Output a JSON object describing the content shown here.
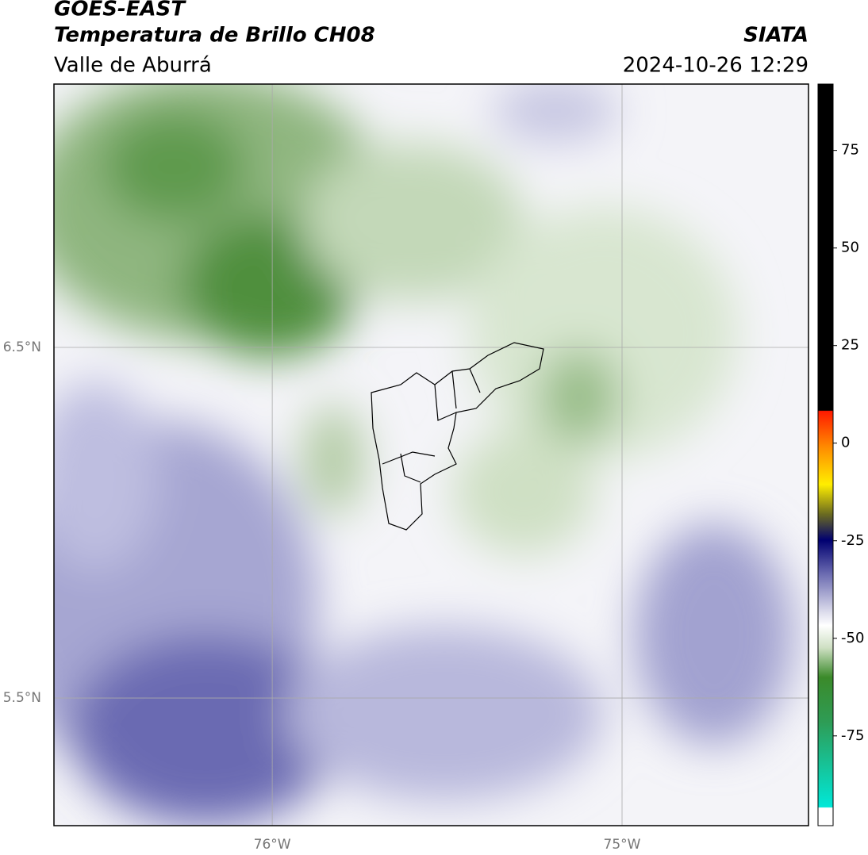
{
  "header": {
    "title": "GOES-EAST",
    "subtitle": "Temperatura de Brillo CH08",
    "region": "Valle de Aburrá",
    "agency": "SIATA",
    "datetime": "2024-10-26 12:29"
  },
  "map": {
    "xlim": [
      -76.624,
      -74.467
    ],
    "ylim": [
      5.136,
      7.251
    ],
    "xticks": [
      {
        "value": -76,
        "label": "76°W"
      },
      {
        "value": -75,
        "label": "75°W"
      }
    ],
    "yticks": [
      {
        "value": 6.5,
        "label": "6.5°N"
      },
      {
        "value": 5.5,
        "label": "5.5°N"
      }
    ],
    "grid": true
  },
  "colorbar": {
    "lim": [
      -98,
      92
    ],
    "ticks": [
      75,
      50,
      25,
      0,
      -25,
      -50,
      -75
    ]
  }
}
